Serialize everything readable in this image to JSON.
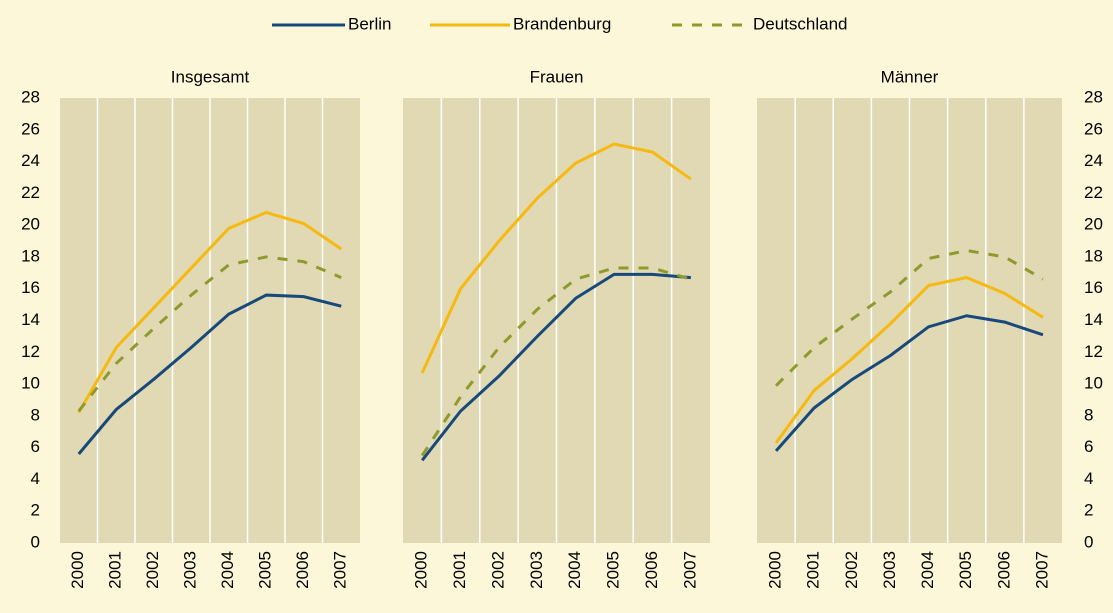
{
  "chart_data": [
    {
      "type": "line",
      "title": "Insgesamt",
      "categories": [
        "2000",
        "2001",
        "2002",
        "2003",
        "2004",
        "2005",
        "2006",
        "2007"
      ],
      "ylim": [
        0,
        28
      ],
      "yticks": [
        0,
        2,
        4,
        6,
        8,
        10,
        12,
        14,
        16,
        18,
        20,
        22,
        24,
        26,
        28
      ],
      "grid": true,
      "series": [
        {
          "name": "Berlin",
          "color": "#17497a",
          "dashed": false,
          "values": [
            5.6,
            8.4,
            10.3,
            12.3,
            14.4,
            15.6,
            15.5,
            14.9
          ]
        },
        {
          "name": "Brandenburg",
          "color": "#f5b90f",
          "dashed": false,
          "values": [
            8.2,
            12.3,
            14.8,
            17.3,
            19.8,
            20.8,
            20.1,
            18.5
          ]
        },
        {
          "name": "Deutschland",
          "color": "#8f9a2c",
          "dashed": true,
          "values": [
            8.3,
            11.3,
            13.5,
            15.6,
            17.5,
            18.0,
            17.7,
            16.7
          ]
        }
      ]
    },
    {
      "type": "line",
      "title": "Frauen",
      "categories": [
        "2000",
        "2001",
        "2002",
        "2003",
        "2004",
        "2005",
        "2006",
        "2007"
      ],
      "ylim": [
        0,
        28
      ],
      "yticks": [
        0,
        2,
        4,
        6,
        8,
        10,
        12,
        14,
        16,
        18,
        20,
        22,
        24,
        26,
        28
      ],
      "grid": true,
      "series": [
        {
          "name": "Berlin",
          "color": "#17497a",
          "dashed": false,
          "values": [
            5.2,
            8.3,
            10.5,
            13.0,
            15.4,
            16.9,
            16.9,
            16.7
          ]
        },
        {
          "name": "Brandenburg",
          "color": "#f5b90f",
          "dashed": false,
          "values": [
            10.7,
            16.0,
            19.0,
            21.7,
            23.9,
            25.1,
            24.6,
            22.9
          ]
        },
        {
          "name": "Deutschland",
          "color": "#8f9a2c",
          "dashed": true,
          "values": [
            5.5,
            9.2,
            12.3,
            14.7,
            16.6,
            17.3,
            17.3,
            16.6
          ]
        }
      ]
    },
    {
      "type": "line",
      "title": "Männer",
      "categories": [
        "2000",
        "2001",
        "2002",
        "2003",
        "2004",
        "2005",
        "2006",
        "2007"
      ],
      "ylim": [
        0,
        28
      ],
      "yticks": [
        0,
        2,
        4,
        6,
        8,
        10,
        12,
        14,
        16,
        18,
        20,
        22,
        24,
        26,
        28
      ],
      "grid": true,
      "series": [
        {
          "name": "Berlin",
          "color": "#17497a",
          "dashed": false,
          "values": [
            5.8,
            8.5,
            10.3,
            11.8,
            13.6,
            14.3,
            13.9,
            13.1
          ]
        },
        {
          "name": "Brandenburg",
          "color": "#f5b90f",
          "dashed": false,
          "values": [
            6.3,
            9.6,
            11.6,
            13.8,
            16.2,
            16.7,
            15.7,
            14.2
          ]
        },
        {
          "name": "Deutschland",
          "color": "#8f9a2c",
          "dashed": true,
          "values": [
            9.9,
            12.3,
            14.1,
            15.8,
            17.9,
            18.4,
            18.0,
            16.6
          ]
        }
      ]
    }
  ]
}
